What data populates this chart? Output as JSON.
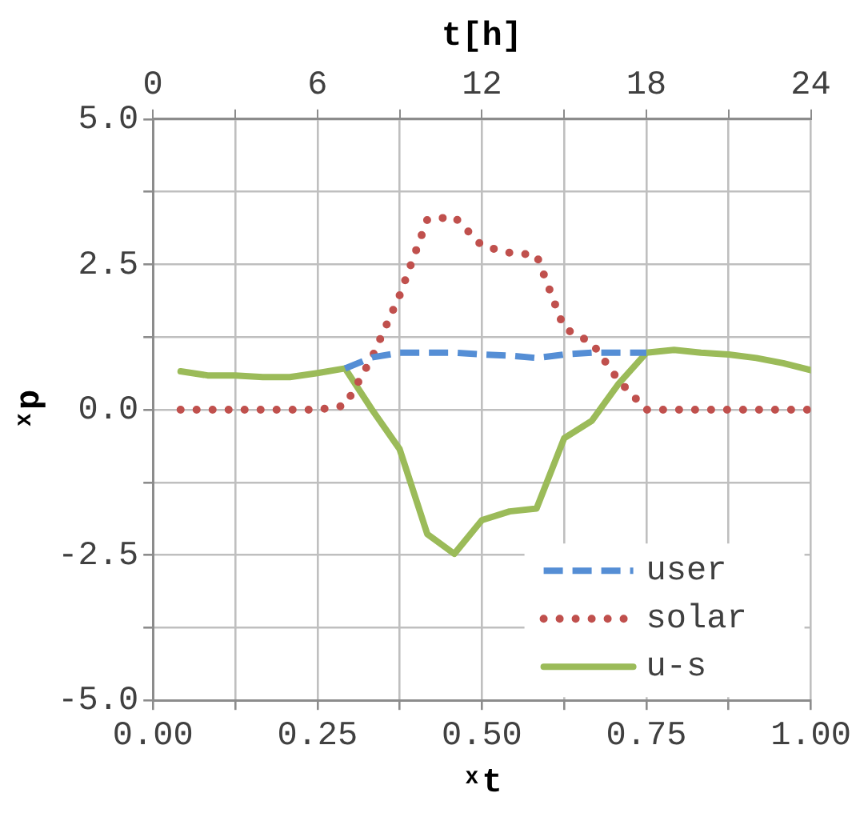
{
  "chart_data": {
    "type": "line",
    "xlabel": "ˣt",
    "ylabel": "ˣp",
    "x2label": "t[h]",
    "x": [
      0.042,
      0.083,
      0.125,
      0.167,
      0.208,
      0.25,
      0.292,
      0.333,
      0.375,
      0.417,
      0.458,
      0.5,
      0.542,
      0.583,
      0.625,
      0.667,
      0.708,
      0.75,
      0.792,
      0.833,
      0.875,
      0.917,
      0.958,
      1
    ],
    "series": [
      {
        "name": "user",
        "color": "#558ed5",
        "line_style": "dashed",
        "values": [
          null,
          null,
          null,
          null,
          null,
          null,
          0.71,
          0.9,
          0.98,
          0.98,
          0.98,
          0.95,
          0.93,
          0.89,
          0.95,
          0.98,
          0.98,
          0.98,
          null,
          null,
          null,
          null,
          null,
          null
        ]
      },
      {
        "name": "solar",
        "color": "#c0504d",
        "line_style": "dotted",
        "values": [
          0,
          0,
          0,
          0,
          0,
          0,
          0.07,
          0.9,
          1.97,
          3.27,
          3.32,
          2.82,
          2.7,
          2.66,
          1.4,
          1.15,
          0.5,
          0,
          0,
          0,
          0,
          0,
          0,
          0
        ]
      },
      {
        "name": "u-s",
        "color": "#9bbb59",
        "line_style": "solid",
        "values": [
          0.66,
          0.59,
          0.59,
          0.56,
          0.56,
          0.63,
          0.71,
          0,
          -0.68,
          -2.14,
          -2.48,
          -1.9,
          -1.75,
          -1.7,
          -0.49,
          -0.19,
          0.45,
          0.98,
          1.03,
          0.98,
          0.95,
          0.89,
          0.8,
          0.68
        ]
      }
    ],
    "xlim": [
      0,
      1
    ],
    "xticks": [
      {
        "value": 0,
        "label": "0.00"
      },
      {
        "value": 0.125,
        "label": null
      },
      {
        "value": 0.25,
        "label": "0.25"
      },
      {
        "value": 0.375,
        "label": null
      },
      {
        "value": 0.5,
        "label": "0.50"
      },
      {
        "value": 0.625,
        "label": null
      },
      {
        "value": 0.75,
        "label": "0.75"
      },
      {
        "value": 0.875,
        "label": null
      },
      {
        "value": 1,
        "label": "1.00"
      }
    ],
    "x2lim": [
      0,
      24
    ],
    "x2ticks": [
      0,
      {
        "value": 3,
        "label": null
      },
      6,
      {
        "value": 9,
        "label": null
      },
      12,
      {
        "value": 15,
        "label": null
      },
      18,
      {
        "value": 21,
        "label": null
      },
      24
    ],
    "ylim": [
      -5,
      5
    ],
    "yticks": [
      {
        "value": -5,
        "label": "-5.0"
      },
      {
        "value": -3.75,
        "label": null
      },
      {
        "value": -2.5,
        "label": "-2.5"
      },
      {
        "value": -1.25,
        "label": null
      },
      {
        "value": 0,
        "label": "0.0"
      },
      {
        "value": 1.25,
        "label": null
      },
      {
        "value": 2.5,
        "label": "2.5"
      },
      {
        "value": 3.75,
        "label": null
      },
      {
        "value": 5,
        "label": "5.0"
      }
    ],
    "grid": true,
    "legend": "bottom right",
    "marker": "none"
  }
}
